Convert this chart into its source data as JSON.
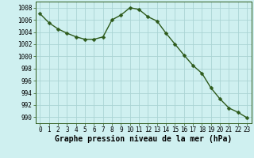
{
  "x": [
    0,
    1,
    2,
    3,
    4,
    5,
    6,
    7,
    8,
    9,
    10,
    11,
    12,
    13,
    14,
    15,
    16,
    17,
    18,
    19,
    20,
    21,
    22,
    23
  ],
  "y": [
    1007.0,
    1005.5,
    1004.5,
    1003.8,
    1003.2,
    1002.8,
    1002.8,
    1003.2,
    1006.0,
    1006.8,
    1008.0,
    1007.7,
    1006.5,
    1005.8,
    1003.8,
    1002.0,
    1000.2,
    998.5,
    997.2,
    994.8,
    993.0,
    991.5,
    990.8,
    989.9
  ],
  "line_color": "#2d5a1b",
  "marker": "D",
  "marker_size": 2.5,
  "bg_color": "#cff0f0",
  "grid_color": "#aad4d4",
  "xlabel": "Graphe pression niveau de la mer (hPa)",
  "xlabel_fontsize": 7,
  "ylabel_ticks": [
    990,
    992,
    994,
    996,
    998,
    1000,
    1002,
    1004,
    1006,
    1008
  ],
  "xticks": [
    0,
    1,
    2,
    3,
    4,
    5,
    6,
    7,
    8,
    9,
    10,
    11,
    12,
    13,
    14,
    15,
    16,
    17,
    18,
    19,
    20,
    21,
    22,
    23
  ],
  "ylim": [
    989,
    1009
  ],
  "xlim": [
    -0.5,
    23.5
  ],
  "tick_fontsize": 5.5,
  "linewidth": 1.0
}
